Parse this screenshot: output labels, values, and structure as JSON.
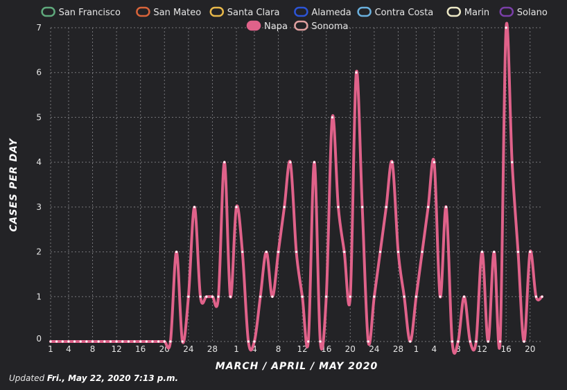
{
  "chart_data": {
    "type": "line",
    "x_label": "MARCH / APRIL / MAY 2020",
    "y_label": "CASES PER DAY",
    "y_ticks": [
      "0",
      "1",
      "2",
      "3",
      "4",
      "5",
      "6",
      "7"
    ],
    "ylim": [
      0,
      7
    ],
    "grid": true,
    "legend_position": "top",
    "x_tick_labels": [
      {
        "day": 0,
        "label": "1"
      },
      {
        "day": 3,
        "label": "4"
      },
      {
        "day": 7,
        "label": "8"
      },
      {
        "day": 11,
        "label": "12"
      },
      {
        "day": 15,
        "label": "16"
      },
      {
        "day": 19,
        "label": "20"
      },
      {
        "day": 23,
        "label": "24"
      },
      {
        "day": 27,
        "label": "28"
      },
      {
        "day": 31,
        "label": "1"
      },
      {
        "day": 34,
        "label": "4"
      },
      {
        "day": 38,
        "label": "8"
      },
      {
        "day": 42,
        "label": "12"
      },
      {
        "day": 46,
        "label": "16"
      },
      {
        "day": 50,
        "label": "20"
      },
      {
        "day": 54,
        "label": "24"
      },
      {
        "day": 58,
        "label": "28"
      },
      {
        "day": 61,
        "label": "1"
      },
      {
        "day": 64,
        "label": "4"
      },
      {
        "day": 68,
        "label": "8"
      },
      {
        "day": 72,
        "label": "12"
      },
      {
        "day": 76,
        "label": "16"
      },
      {
        "day": 80,
        "label": "20"
      }
    ],
    "legend": [
      {
        "name": "San Francisco",
        "color": "#5fa97c",
        "row": 0
      },
      {
        "name": "San Mateo",
        "color": "#d9643a",
        "row": 0
      },
      {
        "name": "Santa Clara",
        "color": "#e8b84a",
        "row": 0
      },
      {
        "name": "Alameda",
        "color": "#2c54d6",
        "row": 0
      },
      {
        "name": "Contra Costa",
        "color": "#6ab0de",
        "row": 0
      },
      {
        "name": "Marin",
        "color": "#ece8c6",
        "row": 0
      },
      {
        "name": "Solano",
        "color": "#7a3fa8",
        "row": 0
      },
      {
        "name": "Napa",
        "color": "#e0628a",
        "row": 1,
        "filled": true
      },
      {
        "name": "Sonoma",
        "color": "#e0a0a0",
        "row": 1
      }
    ],
    "series": [
      {
        "name": "Napa",
        "color": "#e0628a",
        "values": [
          0,
          0,
          0,
          0,
          0,
          0,
          0,
          0,
          0,
          0,
          0,
          0,
          0,
          0,
          0,
          0,
          0,
          0,
          0,
          0,
          0,
          2,
          0,
          1,
          3,
          1,
          1,
          1,
          1,
          4,
          1,
          3,
          2,
          0,
          0,
          1,
          2,
          1,
          2,
          3,
          4,
          2,
          1,
          0,
          4,
          0,
          1,
          5,
          3,
          2,
          1,
          6,
          3,
          0,
          1,
          2,
          3,
          4,
          2,
          1,
          0,
          1,
          2,
          3,
          4,
          1,
          3,
          0,
          0,
          1,
          0,
          0,
          2,
          0,
          2,
          0,
          7,
          4,
          2,
          0,
          2,
          1,
          1
        ]
      }
    ]
  },
  "footer": {
    "prefix": "Updated ",
    "date": "Fri., May 22, 2020 7:13 p.m."
  }
}
